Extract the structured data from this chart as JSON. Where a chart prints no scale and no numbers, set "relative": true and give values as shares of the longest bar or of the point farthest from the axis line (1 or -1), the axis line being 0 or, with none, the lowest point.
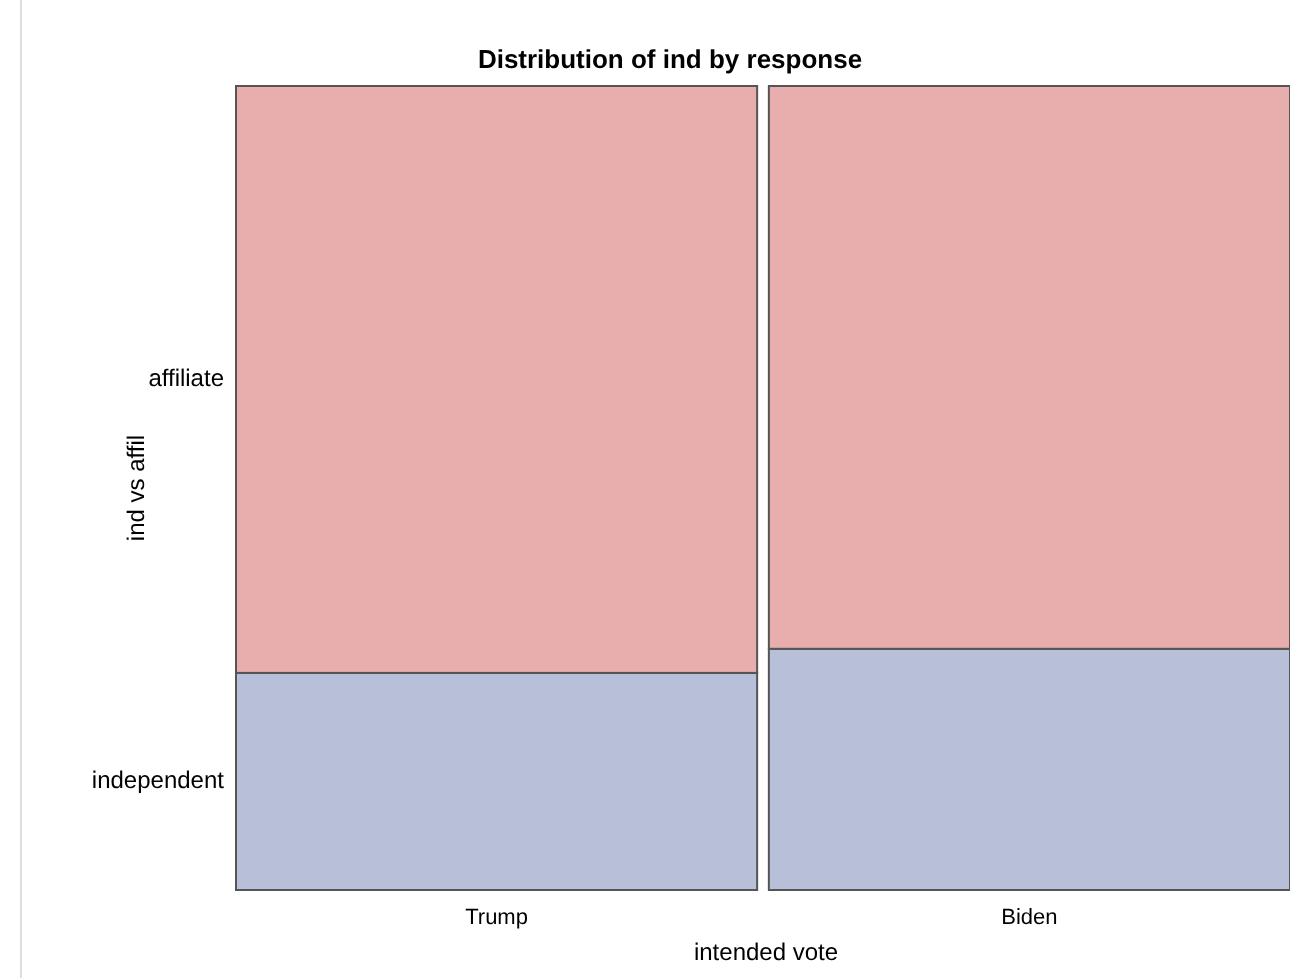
{
  "chart_data": {
    "type": "bar",
    "title": "Distribution of ind by response",
    "xlabel": "intended vote",
    "ylabel": "ind vs affil",
    "categories": [
      "Trump",
      "Biden"
    ],
    "stacked": true,
    "relative": true,
    "legend": false,
    "series": [
      {
        "name": "independent",
        "color": "#b8bfd9",
        "values": [
          0.27,
          0.3
        ]
      },
      {
        "name": "affiliate",
        "color": "#e8aeae",
        "values": [
          0.73,
          0.7
        ]
      }
    ]
  }
}
